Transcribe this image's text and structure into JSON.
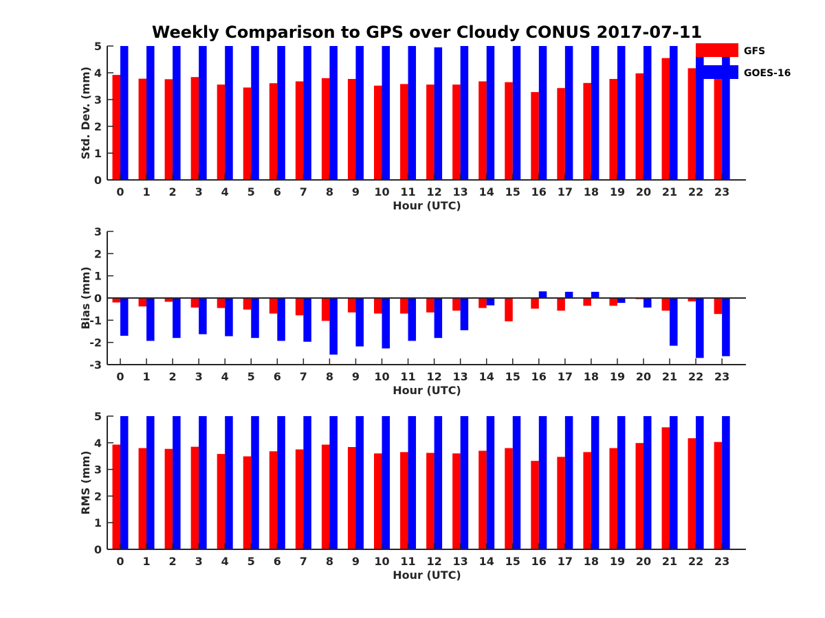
{
  "chart_data": {
    "title": "Weekly Comparison to GPS over Cloudy CONUS 2017-07-11",
    "colors": {
      "GFS": "#ff0000",
      "GOES-16": "#0000ff"
    },
    "legend": {
      "placement": "top-right",
      "entries": [
        "GFS",
        "GOES-16"
      ]
    },
    "panels": [
      {
        "type": "bar",
        "xlabel": "Hour (UTC)",
        "ylabel": "Std. Dev. (mm)",
        "ylim": [
          0,
          5
        ],
        "yticks": [
          "0",
          "1",
          "2",
          "3",
          "4",
          "5"
        ],
        "categories": [
          "0",
          "1",
          "2",
          "3",
          "4",
          "5",
          "6",
          "7",
          "8",
          "9",
          "10",
          "11",
          "12",
          "13",
          "14",
          "15",
          "16",
          "17",
          "18",
          "19",
          "20",
          "21",
          "22",
          "23"
        ],
        "series": [
          {
            "name": "GFS",
            "values": [
              3.92,
              3.78,
              3.76,
              3.84,
              3.56,
              3.45,
              3.61,
              3.68,
              3.8,
              3.77,
              3.52,
              3.58,
              3.56,
              3.56,
              3.68,
              3.65,
              3.28,
              3.43,
              3.62,
              3.77,
              3.98,
              4.55,
              4.17,
              3.88
            ]
          },
          {
            "name": "GOES-16",
            "values": [
              5,
              5,
              5,
              5,
              5,
              5,
              5,
              5,
              5,
              5,
              5,
              5,
              4.95,
              5,
              5,
              5,
              5,
              5,
              5,
              5,
              5,
              5,
              5,
              5
            ]
          }
        ]
      },
      {
        "type": "bar",
        "xlabel": "Hour (UTC)",
        "ylabel": "Bias (mm)",
        "ylim": [
          -3,
          3
        ],
        "yticks": [
          "-3",
          "-2",
          "-1",
          "0",
          "1",
          "2",
          "3"
        ],
        "categories": [
          "0",
          "1",
          "2",
          "3",
          "4",
          "5",
          "6",
          "7",
          "8",
          "9",
          "10",
          "11",
          "12",
          "13",
          "14",
          "15",
          "16",
          "17",
          "18",
          "19",
          "20",
          "21",
          "22",
          "23"
        ],
        "series": [
          {
            "name": "GFS",
            "values": [
              -0.2,
              -0.38,
              -0.17,
              -0.43,
              -0.45,
              -0.52,
              -0.7,
              -0.78,
              -1.03,
              -0.65,
              -0.7,
              -0.7,
              -0.65,
              -0.57,
              -0.45,
              -1.05,
              -0.48,
              -0.57,
              -0.35,
              -0.35,
              -0.05,
              -0.57,
              -0.15,
              -0.72
            ]
          },
          {
            "name": "GOES-16",
            "values": [
              -1.7,
              -1.93,
              -1.8,
              -1.63,
              -1.72,
              -1.8,
              -1.93,
              -1.97,
              -2.55,
              -2.18,
              -2.27,
              -1.93,
              -1.8,
              -1.45,
              -0.33,
              0,
              0.3,
              0.28,
              0.28,
              -0.22,
              -0.43,
              -2.15,
              -2.7,
              -2.62
            ]
          }
        ]
      },
      {
        "type": "bar",
        "xlabel": "Hour (UTC)",
        "ylabel": "RMS (mm)",
        "ylim": [
          0,
          5
        ],
        "yticks": [
          "0",
          "1",
          "2",
          "3",
          "4",
          "5"
        ],
        "categories": [
          "0",
          "1",
          "2",
          "3",
          "4",
          "5",
          "6",
          "7",
          "8",
          "9",
          "10",
          "11",
          "12",
          "13",
          "14",
          "15",
          "16",
          "17",
          "18",
          "19",
          "20",
          "21",
          "22",
          "23"
        ],
        "series": [
          {
            "name": "GFS",
            "values": [
              3.93,
              3.8,
              3.77,
              3.85,
              3.58,
              3.49,
              3.68,
              3.75,
              3.93,
              3.84,
              3.6,
              3.65,
              3.62,
              3.6,
              3.7,
              3.8,
              3.32,
              3.47,
              3.65,
              3.8,
              3.99,
              4.58,
              4.17,
              4.03
            ]
          },
          {
            "name": "GOES-16",
            "values": [
              5,
              5,
              5,
              5,
              5,
              5,
              5,
              5,
              5,
              5,
              5,
              5,
              5,
              5,
              5,
              5,
              5,
              5,
              5,
              5,
              5,
              5,
              5,
              5
            ]
          }
        ]
      }
    ]
  }
}
